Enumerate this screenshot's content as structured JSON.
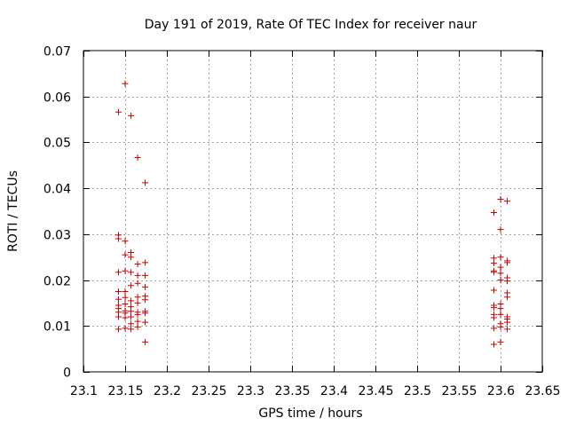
{
  "chart_data": {
    "type": "scatter",
    "title": "Day 191 of 2019, Rate Of TEC Index for receiver naur",
    "xlabel": "GPS time / hours",
    "ylabel": "ROTI / TECUs",
    "xlim": [
      23.1,
      23.65
    ],
    "ylim": [
      0,
      0.07
    ],
    "x_ticks": [
      23.1,
      23.15,
      23.2,
      23.25,
      23.3,
      23.35,
      23.4,
      23.45,
      23.5,
      23.55,
      23.6,
      23.65
    ],
    "x_tick_labels": [
      "23.1",
      "23.15",
      "23.2",
      "23.25",
      "23.3",
      "23.35",
      "23.4",
      "23.45",
      "23.5",
      "23.55",
      "23.6",
      "23.65"
    ],
    "y_ticks": [
      0,
      0.01,
      0.02,
      0.03,
      0.04,
      0.05,
      0.06,
      0.07
    ],
    "y_tick_labels": [
      "0",
      "0.01",
      "0.02",
      "0.03",
      "0.04",
      "0.05",
      "0.06",
      "0.07"
    ],
    "grid": true,
    "marker": "plus",
    "color": "#cc0000",
    "series": [
      {
        "points": [
          [
            23.142,
            0.0566
          ],
          [
            23.142,
            0.0298
          ],
          [
            23.142,
            0.029
          ],
          [
            23.142,
            0.0217
          ],
          [
            23.142,
            0.0175
          ],
          [
            23.142,
            0.0158
          ],
          [
            23.142,
            0.0145
          ],
          [
            23.142,
            0.0138
          ],
          [
            23.142,
            0.013
          ],
          [
            23.142,
            0.012
          ],
          [
            23.142,
            0.0093
          ],
          [
            23.15,
            0.0628
          ],
          [
            23.15,
            0.0285
          ],
          [
            23.15,
            0.0255
          ],
          [
            23.15,
            0.022
          ],
          [
            23.15,
            0.0175
          ],
          [
            23.15,
            0.0162
          ],
          [
            23.15,
            0.0148
          ],
          [
            23.15,
            0.0133
          ],
          [
            23.15,
            0.0128
          ],
          [
            23.15,
            0.0118
          ],
          [
            23.15,
            0.0095
          ],
          [
            23.157,
            0.0558
          ],
          [
            23.157,
            0.026
          ],
          [
            23.157,
            0.025
          ],
          [
            23.157,
            0.0217
          ],
          [
            23.157,
            0.0188
          ],
          [
            23.157,
            0.0155
          ],
          [
            23.157,
            0.0142
          ],
          [
            23.157,
            0.0132
          ],
          [
            23.157,
            0.012
          ],
          [
            23.157,
            0.0105
          ],
          [
            23.157,
            0.0093
          ],
          [
            23.165,
            0.0467
          ],
          [
            23.165,
            0.0235
          ],
          [
            23.165,
            0.021
          ],
          [
            23.165,
            0.0193
          ],
          [
            23.165,
            0.0163
          ],
          [
            23.165,
            0.015
          ],
          [
            23.165,
            0.013
          ],
          [
            23.165,
            0.0125
          ],
          [
            23.165,
            0.011
          ],
          [
            23.165,
            0.0098
          ],
          [
            23.174,
            0.0412
          ],
          [
            23.174,
            0.0238
          ],
          [
            23.174,
            0.021
          ],
          [
            23.174,
            0.0185
          ],
          [
            23.174,
            0.0165
          ],
          [
            23.174,
            0.0157
          ],
          [
            23.174,
            0.0132
          ],
          [
            23.174,
            0.0128
          ],
          [
            23.174,
            0.0108
          ],
          [
            23.174,
            0.0065
          ],
          [
            23.592,
            0.0347
          ],
          [
            23.592,
            0.0248
          ],
          [
            23.592,
            0.0237
          ],
          [
            23.592,
            0.022
          ],
          [
            23.592,
            0.0217
          ],
          [
            23.592,
            0.0178
          ],
          [
            23.592,
            0.0145
          ],
          [
            23.592,
            0.014
          ],
          [
            23.592,
            0.0125
          ],
          [
            23.592,
            0.0118
          ],
          [
            23.592,
            0.0095
          ],
          [
            23.592,
            0.006
          ],
          [
            23.6,
            0.0376
          ],
          [
            23.6,
            0.031
          ],
          [
            23.6,
            0.025
          ],
          [
            23.6,
            0.0228
          ],
          [
            23.6,
            0.0215
          ],
          [
            23.6,
            0.02
          ],
          [
            23.6,
            0.0148
          ],
          [
            23.6,
            0.0138
          ],
          [
            23.6,
            0.0125
          ],
          [
            23.6,
            0.0105
          ],
          [
            23.6,
            0.0098
          ],
          [
            23.6,
            0.0065
          ],
          [
            23.608,
            0.0372
          ],
          [
            23.608,
            0.0242
          ],
          [
            23.608,
            0.0238
          ],
          [
            23.608,
            0.0205
          ],
          [
            23.608,
            0.0198
          ],
          [
            23.608,
            0.0172
          ],
          [
            23.608,
            0.0163
          ],
          [
            23.608,
            0.012
          ],
          [
            23.608,
            0.0115
          ],
          [
            23.608,
            0.0108
          ],
          [
            23.608,
            0.0093
          ]
        ]
      }
    ]
  }
}
